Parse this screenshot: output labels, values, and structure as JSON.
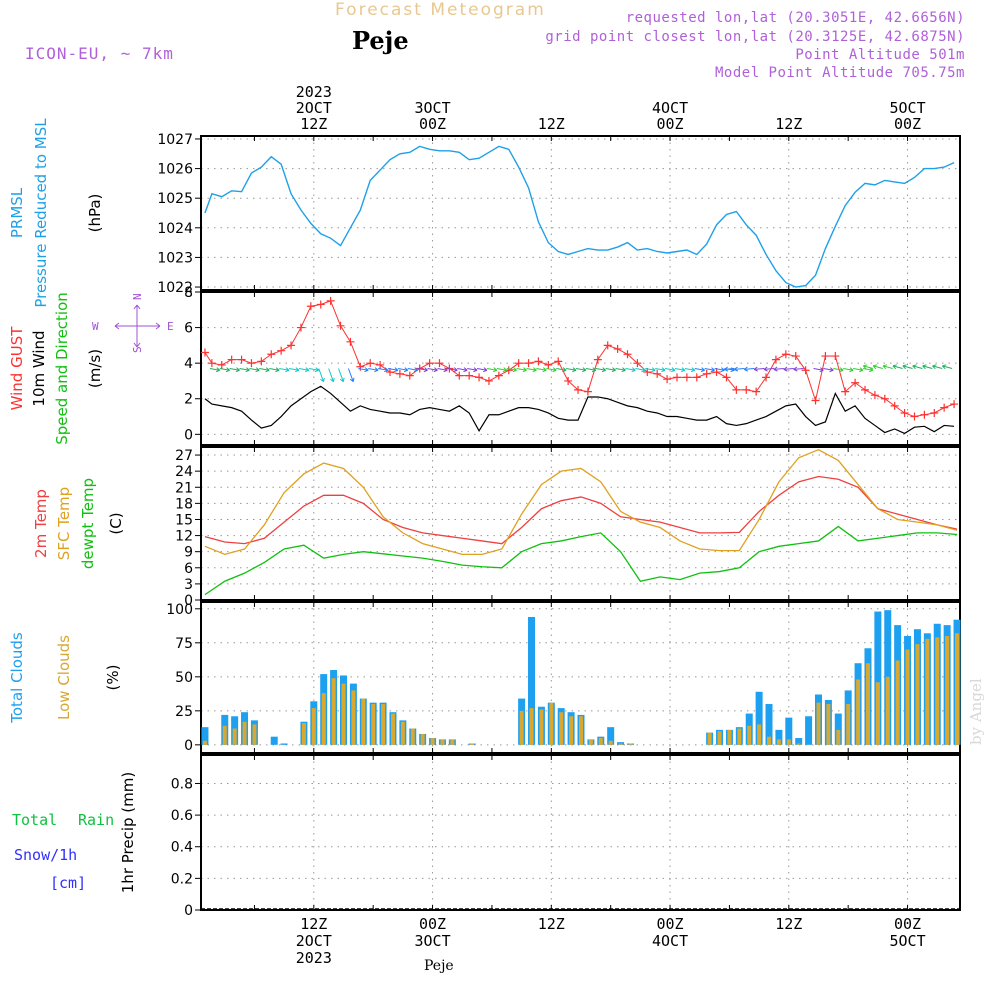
{
  "header": {
    "title": "Forecast Meteogram",
    "location": "Peje",
    "model": "ICON-EU, ~ 7km",
    "requested": "requested lon,lat (20.3051E, 42.6656N)",
    "grid_point": "grid point closest lon,lat (20.3125E, 42.6875N)",
    "point_alt": "Point Altitude 501m",
    "model_alt": "Model Point Altitude 705.75m"
  },
  "footer": {
    "location": "Peje"
  },
  "watermark": "by Angel",
  "colors": {
    "pressure": "#1ea0e8",
    "gust": "#ff3030",
    "wind": "#000000",
    "temp2m": "#ee4040",
    "sfc": "#e0a020",
    "dewpt": "#10c010",
    "total_clouds": "#1ea0f0",
    "low_clouds": "#d8a830",
    "rain": "#10c040",
    "snow": "#3030ff",
    "compass": "#a050d8"
  },
  "time_axis": {
    "top_labels": [
      {
        "t": 0,
        "lines": [
          "2023",
          "2OCT",
          "12Z"
        ]
      },
      {
        "t": 12,
        "lines": [
          "3OCT",
          "00Z"
        ]
      },
      {
        "t": 24,
        "lines": [
          "12Z"
        ]
      },
      {
        "t": 36,
        "lines": [
          "4OCT",
          "00Z"
        ]
      },
      {
        "t": 48,
        "lines": [
          "12Z"
        ]
      },
      {
        "t": 60,
        "lines": [
          "5OCT",
          "00Z"
        ]
      }
    ],
    "bottom_labels": [
      {
        "t": 0,
        "lines": [
          "12Z",
          "2OCT",
          "2023"
        ]
      },
      {
        "t": 12,
        "lines": [
          "00Z",
          "3OCT"
        ]
      },
      {
        "t": 24,
        "lines": [
          "12Z"
        ]
      },
      {
        "t": 36,
        "lines": [
          "00Z",
          "4OCT"
        ]
      },
      {
        "t": 48,
        "lines": [
          "12Z"
        ]
      },
      {
        "t": 60,
        "lines": [
          "00Z",
          "5OCT"
        ]
      }
    ]
  },
  "chart_data": [
    {
      "type": "line",
      "id": "pressure",
      "ylabels_left": [
        "PRMSL",
        "Pressure Reduced to MSL"
      ],
      "unit": "(hPa)",
      "ylim": [
        1021.9,
        1027.1
      ],
      "yticks": [
        1022,
        1023,
        1024,
        1025,
        1026,
        1027
      ],
      "series": [
        {
          "name": "PRMSL",
          "x": [
            -11,
            -10.3,
            -9.3,
            -8.3,
            -7.3,
            -6.3,
            -5.3,
            -4.3,
            -3.3,
            -2.3,
            -1.3,
            -0.3,
            0.7,
            1.7,
            2.7,
            3.7,
            4.7,
            5.7,
            6.7,
            7.7,
            8.7,
            9.7,
            10.7,
            11.7,
            12.7,
            13.7,
            14.7,
            15.7,
            16.7,
            17.7,
            18.7,
            19.7,
            20.7,
            21.7,
            22.7,
            23.7,
            24.7,
            25.7,
            26.7,
            27.7,
            28.7,
            29.7,
            30.7,
            31.7,
            32.7,
            33.7,
            34.7,
            35.7,
            36.7,
            37.7,
            38.7,
            39.7,
            40.7,
            41.7,
            42.7,
            43.7,
            44.7,
            45.7,
            46.7,
            47.7,
            48.7,
            49.7,
            50.7,
            51.7,
            52.7,
            53.7,
            54.7,
            55.7,
            56.7,
            57.7,
            58.7,
            59.7,
            60.7,
            61.7,
            62.7,
            63.7,
            64.7
          ],
          "values": [
            1024.5,
            1025.15,
            1025.05,
            1025.25,
            1025.22,
            1025.85,
            1026.05,
            1026.4,
            1026.15,
            1025.15,
            1024.6,
            1024.15,
            1023.8,
            1023.65,
            1023.4,
            1024.0,
            1024.6,
            1025.6,
            1025.95,
            1026.3,
            1026.5,
            1026.55,
            1026.75,
            1026.65,
            1026.6,
            1026.6,
            1026.55,
            1026.3,
            1026.35,
            1026.55,
            1026.75,
            1026.65,
            1026.05,
            1025.35,
            1024.2,
            1023.5,
            1023.2,
            1023.1,
            1023.2,
            1023.3,
            1023.25,
            1023.25,
            1023.35,
            1023.5,
            1023.25,
            1023.3,
            1023.2,
            1023.15,
            1023.2,
            1023.25,
            1023.1,
            1023.45,
            1024.1,
            1024.45,
            1024.55,
            1024.1,
            1023.75,
            1023.1,
            1022.55,
            1022.15,
            1022.0,
            1022.05,
            1022.4,
            1023.3,
            1024.05,
            1024.75,
            1025.2,
            1025.5,
            1025.45,
            1025.6,
            1025.55,
            1025.5,
            1025.7,
            1026.0,
            1026.0,
            1026.05,
            1026.2
          ]
        }
      ]
    },
    {
      "type": "line",
      "id": "wind",
      "ylabels_left": [
        "Wind GUST",
        "10m Wind",
        "Speed and Direction"
      ],
      "unit": "(m/s)",
      "compass": {
        "n": "N",
        "s": "S",
        "w": "W",
        "e": "E"
      },
      "ylim": [
        -0.6,
        8
      ],
      "yticks": [
        0,
        2,
        4,
        6,
        8
      ],
      "series": [
        {
          "name": "Wind GUST",
          "x": [
            -11,
            -10.3,
            -9.3,
            -8.3,
            -7.3,
            -6.3,
            -5.3,
            -4.3,
            -3.3,
            -2.3,
            -1.3,
            -0.3,
            0.7,
            1.7,
            2.7,
            3.7,
            4.7,
            5.7,
            6.7,
            7.7,
            8.7,
            9.7,
            10.7,
            11.7,
            12.7,
            13.7,
            14.7,
            15.7,
            16.7,
            17.7,
            18.7,
            19.7,
            20.7,
            21.7,
            22.7,
            23.7,
            24.7,
            25.7,
            26.7,
            27.7,
            28.7,
            29.7,
            30.7,
            31.7,
            32.7,
            33.7,
            34.7,
            35.7,
            36.7,
            37.7,
            38.7,
            39.7,
            40.7,
            41.7,
            42.7,
            43.7,
            44.7,
            45.7,
            46.7,
            47.7,
            48.7,
            49.7,
            50.7,
            51.7,
            52.7,
            53.7,
            54.7,
            55.7,
            56.7,
            57.7,
            58.7,
            59.7,
            60.7,
            61.7,
            62.7,
            63.7,
            64.7
          ],
          "values": [
            4.6,
            4.0,
            3.9,
            4.2,
            4.2,
            4.0,
            4.1,
            4.5,
            4.7,
            5.0,
            6.0,
            7.2,
            7.3,
            7.5,
            6.1,
            5.2,
            3.8,
            4.0,
            3.9,
            3.5,
            3.4,
            3.3,
            3.7,
            4.0,
            4.0,
            3.7,
            3.3,
            3.3,
            3.2,
            3.0,
            3.3,
            3.6,
            4.0,
            4.0,
            4.1,
            3.9,
            4.1,
            3.0,
            2.5,
            2.4,
            4.2,
            5.0,
            4.8,
            4.5,
            4.0,
            3.5,
            3.4,
            3.1,
            3.2,
            3.2,
            3.2,
            3.4,
            3.5,
            3.2,
            2.5,
            2.5,
            2.4,
            3.2,
            4.2,
            4.5,
            4.4,
            3.6,
            1.9,
            4.4,
            4.4,
            2.4,
            2.9,
            2.5,
            2.2,
            2.0,
            1.6,
            1.2,
            1.0,
            1.1,
            1.2,
            1.5,
            1.7
          ]
        },
        {
          "name": "10m Wind",
          "x": [
            -11,
            -10.3,
            -9.3,
            -8.3,
            -7.3,
            -6.3,
            -5.3,
            -4.3,
            -3.3,
            -2.3,
            -1.3,
            -0.3,
            0.7,
            1.7,
            2.7,
            3.7,
            4.7,
            5.7,
            6.7,
            7.7,
            8.7,
            9.7,
            10.7,
            11.7,
            12.7,
            13.7,
            14.7,
            15.7,
            16.7,
            17.7,
            18.7,
            19.7,
            20.7,
            21.7,
            22.7,
            23.7,
            24.7,
            25.7,
            26.7,
            27.7,
            28.7,
            29.7,
            30.7,
            31.7,
            32.7,
            33.7,
            34.7,
            35.7,
            36.7,
            37.7,
            38.7,
            39.7,
            40.7,
            41.7,
            42.7,
            43.7,
            44.7,
            45.7,
            46.7,
            47.7,
            48.7,
            49.7,
            50.7,
            51.7,
            52.7,
            53.7,
            54.7,
            55.7,
            56.7,
            57.7,
            58.7,
            59.7,
            60.7,
            61.7,
            62.7,
            63.7,
            64.7
          ],
          "values": [
            2.0,
            1.7,
            1.6,
            1.5,
            1.3,
            0.8,
            0.35,
            0.5,
            1.0,
            1.6,
            2.0,
            2.4,
            2.7,
            2.3,
            1.8,
            1.3,
            1.6,
            1.4,
            1.3,
            1.2,
            1.2,
            1.1,
            1.4,
            1.5,
            1.4,
            1.3,
            1.6,
            1.2,
            0.2,
            1.1,
            1.1,
            1.3,
            1.5,
            1.5,
            1.4,
            1.2,
            0.9,
            0.8,
            0.8,
            2.1,
            2.1,
            2.0,
            1.8,
            1.6,
            1.5,
            1.3,
            1.2,
            1.0,
            1.0,
            0.9,
            0.8,
            0.8,
            1.0,
            0.6,
            0.5,
            0.6,
            0.8,
            1.0,
            1.3,
            1.6,
            1.7,
            1.0,
            0.5,
            0.7,
            2.3,
            1.3,
            1.6,
            0.9,
            0.5,
            0.1,
            0.3,
            0.05,
            0.4,
            0.45,
            0.15,
            0.5,
            0.45
          ]
        }
      ],
      "direction_vectors_note": ""
    },
    {
      "type": "line",
      "id": "temperature",
      "ylabels_left": [
        "2m Temp",
        "SFC Temp",
        "dewpt Temp"
      ],
      "unit": "(C)",
      "ylim": [
        0,
        28.5
      ],
      "yticks": [
        0,
        3,
        6,
        9,
        12,
        15,
        18,
        21,
        24,
        27
      ],
      "series": [
        {
          "name": "2m Temp",
          "x": [
            -11,
            -9,
            -7,
            -5,
            -3,
            -1,
            1,
            3,
            5,
            7,
            9,
            11,
            13,
            15,
            17,
            19,
            21,
            23,
            25,
            27,
            29,
            31,
            33,
            35,
            37,
            39,
            41,
            43,
            45,
            47,
            49,
            51,
            53,
            55,
            57,
            59,
            61,
            63,
            65
          ],
          "values": [
            11.8,
            10.8,
            10.5,
            11.5,
            14.5,
            17.5,
            19.5,
            19.5,
            18.0,
            15.0,
            13.5,
            12.5,
            12.0,
            11.5,
            11.0,
            10.5,
            13.5,
            17.0,
            18.5,
            19.2,
            18.0,
            15.5,
            15.0,
            14.5,
            13.5,
            12.5,
            12.5,
            12.6,
            16.5,
            19.5,
            22.0,
            23.0,
            22.5,
            21.0,
            17.0,
            16.0,
            15.0,
            14.0,
            13.2
          ]
        },
        {
          "name": "SFC Temp",
          "x": [
            -11,
            -9,
            -7,
            -5,
            -3,
            -1,
            1,
            3,
            5,
            7,
            9,
            11,
            13,
            15,
            17,
            19,
            21,
            23,
            25,
            27,
            29,
            31,
            33,
            35,
            37,
            39,
            41,
            43,
            45,
            47,
            49,
            51,
            53,
            55,
            57,
            59,
            61,
            63,
            65
          ],
          "values": [
            10.0,
            8.5,
            9.5,
            14.0,
            20.0,
            23.5,
            25.5,
            24.5,
            21.0,
            15.5,
            12.5,
            10.5,
            9.5,
            8.5,
            8.5,
            9.5,
            16.0,
            21.5,
            24.0,
            24.5,
            22.0,
            16.5,
            14.5,
            13.5,
            11.0,
            9.5,
            9.2,
            9.2,
            15.0,
            22.0,
            26.5,
            28.0,
            26.0,
            21.5,
            17.0,
            15.0,
            14.5,
            14.0,
            13.0
          ]
        },
        {
          "name": "dewpt Temp",
          "x": [
            -11,
            -9,
            -7,
            -5,
            -3,
            -1,
            1,
            3,
            5,
            7,
            9,
            11,
            13,
            15,
            17,
            19,
            21,
            23,
            25,
            27,
            29,
            31,
            33,
            35,
            37,
            39,
            41,
            43,
            45,
            47,
            49,
            51,
            53,
            55,
            57,
            59,
            61,
            63,
            65
          ],
          "values": [
            1.0,
            3.5,
            5.0,
            7.0,
            9.5,
            10.2,
            7.8,
            8.5,
            9.0,
            8.6,
            8.2,
            7.8,
            7.2,
            6.5,
            6.2,
            6.0,
            9.0,
            10.5,
            11.0,
            11.8,
            12.5,
            9.0,
            3.5,
            4.3,
            3.8,
            5.0,
            5.3,
            6.0,
            9.0,
            10.0,
            10.5,
            11.0,
            13.7,
            11.0,
            11.5,
            12.0,
            12.5,
            12.5,
            12.2
          ]
        }
      ]
    },
    {
      "type": "bar",
      "id": "clouds",
      "ylabels_left": [
        "Total Clouds",
        "Low Clouds"
      ],
      "unit": "(%)",
      "ylim": [
        -6,
        105
      ],
      "yticks": [
        0,
        25,
        50,
        75,
        100
      ],
      "x": [
        -11,
        -9,
        -8,
        -7,
        -6,
        -5,
        -4,
        -3,
        -1,
        0,
        1,
        2,
        3,
        4,
        5,
        6,
        7,
        8,
        9,
        10,
        11,
        12,
        13,
        14,
        16,
        21,
        22,
        23,
        24,
        25,
        26,
        27,
        28,
        29,
        30,
        31,
        32,
        40,
        41,
        42,
        43,
        44,
        45,
        46,
        47,
        48,
        49,
        50,
        51,
        52,
        53,
        54,
        55,
        56,
        57,
        58,
        59,
        60,
        61,
        62,
        63,
        64,
        65
      ],
      "series": [
        {
          "name": "Total Clouds",
          "values": [
            13,
            22,
            21,
            24,
            18,
            0,
            6,
            1,
            17,
            32,
            52,
            55,
            51,
            45,
            34,
            31,
            31,
            24,
            18,
            12,
            8,
            5,
            4,
            4,
            1,
            34,
            94,
            28,
            31,
            27,
            24,
            22,
            4,
            6,
            13,
            2,
            1,
            9,
            11,
            11,
            13,
            23,
            39,
            30,
            11,
            20,
            5,
            21,
            37,
            33,
            23,
            40,
            60,
            71,
            98,
            99,
            88,
            80,
            85,
            82,
            89,
            88,
            92
          ]
        },
        {
          "name": "Low Clouds",
          "values": [
            3,
            14,
            12,
            17,
            15,
            0,
            0,
            0,
            16,
            27,
            38,
            49,
            45,
            40,
            34,
            30,
            30,
            23,
            17,
            12,
            8,
            5,
            4,
            4,
            1,
            25,
            27,
            26,
            31,
            24,
            21,
            21,
            4,
            5,
            3,
            1,
            1,
            9,
            10,
            11,
            12,
            14,
            15,
            6,
            4,
            4,
            1,
            0,
            31,
            30,
            11,
            30,
            48,
            60,
            46,
            50,
            62,
            70,
            74,
            78,
            79,
            80,
            82
          ]
        }
      ]
    },
    {
      "type": "bar",
      "id": "precip",
      "ylabels_left": [
        "Total",
        "Rain",
        "Snow/1h",
        "[cm]"
      ],
      "unit": "1hr Precip (mm)",
      "ylim": [
        0,
        0.98
      ],
      "yticks": [
        0,
        0.2,
        0.4,
        0.6,
        0.8
      ],
      "ytick_labels": [
        "0",
        "0.2",
        "0.4",
        "0.6",
        "0.8"
      ],
      "series": [
        {
          "name": "Total Rain",
          "values": []
        },
        {
          "name": "Snow/1h",
          "values": []
        }
      ]
    }
  ]
}
